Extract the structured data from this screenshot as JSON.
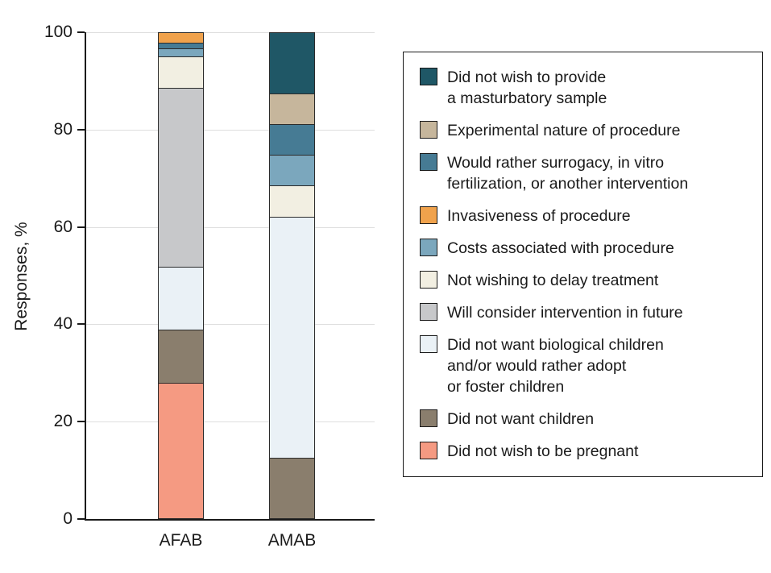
{
  "chart_data": {
    "type": "bar",
    "stacked": true,
    "title": "",
    "ylabel": "Responses, %",
    "xlabel": "",
    "ylim": [
      0,
      100
    ],
    "yticks": [
      0,
      20,
      40,
      60,
      80,
      100
    ],
    "grid": true,
    "legend_position": "right",
    "categories": [
      "AFAB",
      "AMAB"
    ],
    "series": [
      {
        "name": "Did not wish to be pregnant",
        "color": "#f59a82",
        "values": [
          28,
          0
        ]
      },
      {
        "name": "Did not want children",
        "color": "#8a7e6d",
        "values": [
          11,
          12.5
        ]
      },
      {
        "name": "Did not want biological children and/or would rather adopt or foster children",
        "color": "#eaf1f6",
        "values": [
          13,
          50
        ]
      },
      {
        "name": "Will consider intervention in future",
        "color": "#c7c8ca",
        "values": [
          37,
          0
        ]
      },
      {
        "name": "Not wishing to delay treatment",
        "color": "#f2efe2",
        "values": [
          6.5,
          6.25
        ]
      },
      {
        "name": "Costs associated with procedure",
        "color": "#7ba7bd",
        "values": [
          1.5,
          6.25
        ]
      },
      {
        "name": "Would rather surrogacy, in vitro fertilization, or another intervention",
        "color": "#467b94",
        "values": [
          1,
          6.25
        ]
      },
      {
        "name": "Invasiveness of procedure",
        "color": "#f0a24c",
        "values": [
          2,
          0
        ]
      },
      {
        "name": "Experimental nature of procedure",
        "color": "#c6b69c",
        "values": [
          0,
          6.25
        ]
      },
      {
        "name": "Did not wish to provide a masturbatory sample",
        "color": "#1f5766",
        "values": [
          0,
          12.5
        ]
      }
    ],
    "legend": [
      {
        "series": 9,
        "lines": [
          "Did not wish to provide",
          "a masturbatory sample"
        ]
      },
      {
        "series": 8,
        "lines": [
          "Experimental nature of procedure"
        ]
      },
      {
        "series": 6,
        "lines": [
          "Would rather surrogacy, in vitro",
          "fertilization, or another intervention"
        ]
      },
      {
        "series": 7,
        "lines": [
          "Invasiveness of procedure"
        ]
      },
      {
        "series": 5,
        "lines": [
          "Costs associated with procedure"
        ]
      },
      {
        "series": 4,
        "lines": [
          "Not wishing to delay treatment"
        ]
      },
      {
        "series": 3,
        "lines": [
          "Will consider intervention in future"
        ]
      },
      {
        "series": 2,
        "lines": [
          "Did not want biological children",
          "and/or would rather adopt",
          "or foster children"
        ]
      },
      {
        "series": 1,
        "lines": [
          "Did not want children"
        ]
      },
      {
        "series": 0,
        "lines": [
          "Did not wish to be pregnant"
        ]
      }
    ]
  }
}
